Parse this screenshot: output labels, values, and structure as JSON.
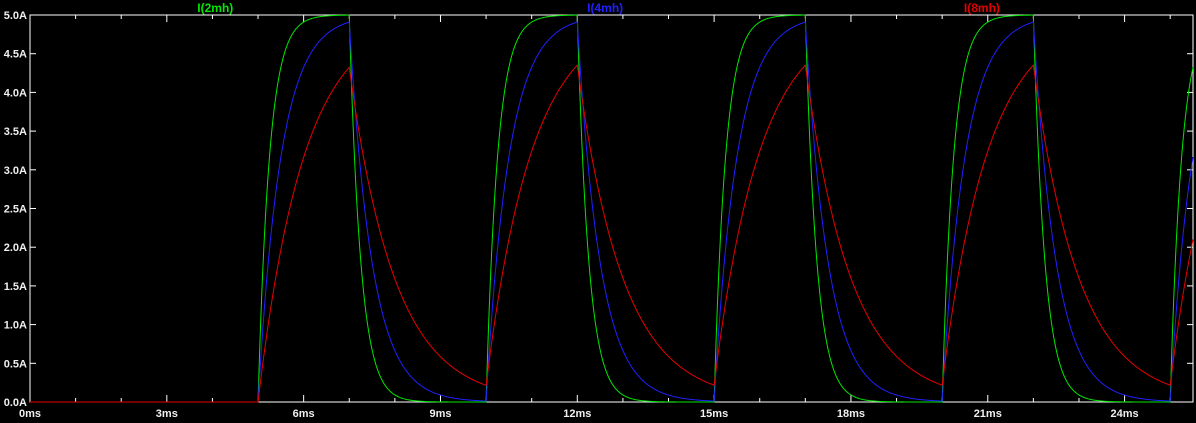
{
  "window": {
    "background_color": "#000000",
    "frame_color": "#ffffff",
    "tick_label_color": "#f0f0f0"
  },
  "chart_data": {
    "type": "line",
    "title": "",
    "xlabel": "",
    "ylabel": "",
    "grid": false,
    "legend_position": "top",
    "x_axis": {
      "unit": "ms",
      "range": [
        0,
        25.5
      ],
      "tick_values": [
        0,
        3,
        6,
        9,
        12,
        15,
        18,
        21,
        24
      ],
      "tick_labels": [
        "0ms",
        "3ms",
        "6ms",
        "9ms",
        "12ms",
        "15ms",
        "18ms",
        "21ms",
        "24ms"
      ],
      "minor_tick_step": 1
    },
    "y_axis": {
      "unit": "A",
      "range": [
        0,
        5
      ],
      "tick_values": [
        5.0,
        4.5,
        4.0,
        3.5,
        3.0,
        2.5,
        2.0,
        1.5,
        1.0,
        0.5,
        0.0
      ],
      "tick_labels": [
        "5.0A",
        "4.5A",
        "4.0A",
        "3.5A",
        "3.0A",
        "2.5A",
        "2.0A",
        "1.5A",
        "1.0A",
        "0.5A",
        "0.0A"
      ]
    },
    "pulse": {
      "start_ms": 5,
      "on_ms": 2,
      "period_ms": 5,
      "steady_amplitude_A": 5
    },
    "series": [
      {
        "name": "I(2mh)",
        "color": "#00e800",
        "tau_ms": 0.25,
        "first_peak_A": 5.0,
        "value_at_0ms": 0.0
      },
      {
        "name": "I(4mh)",
        "color": "#2020ff",
        "tau_ms": 0.5,
        "first_peak_A": 4.9,
        "value_at_0ms": 0.0
      },
      {
        "name": "I(8mh)",
        "color": "#e60000",
        "tau_ms": 1.0,
        "first_peak_A": 4.3,
        "value_at_0ms": 0.0
      }
    ]
  }
}
